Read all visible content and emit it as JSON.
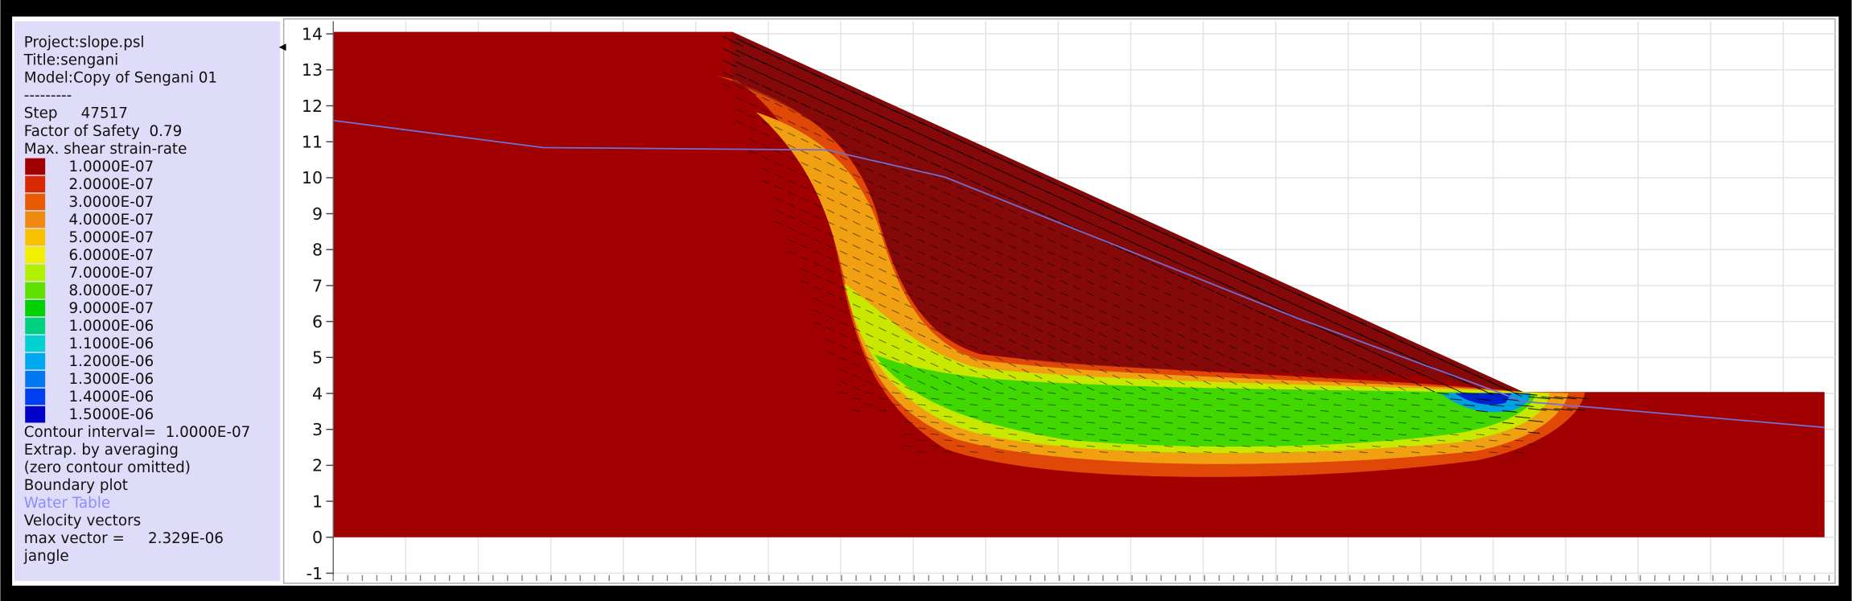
{
  "panel": {
    "header": [
      "Project:slope.psl",
      "Title:sengani",
      "Model:Copy of Sengani 01",
      "---------",
      "Step     47517",
      "Factor of Safety  0.79",
      "Max. shear strain-rate"
    ],
    "legend": [
      {
        "label": "1.0000E-07",
        "color": "#a00000"
      },
      {
        "label": "2.0000E-07",
        "color": "#d82800"
      },
      {
        "label": "3.0000E-07",
        "color": "#e85a00"
      },
      {
        "label": "4.0000E-07",
        "color": "#f08a10"
      },
      {
        "label": "5.0000E-07",
        "color": "#f8c000"
      },
      {
        "label": "6.0000E-07",
        "color": "#f0f000"
      },
      {
        "label": "7.0000E-07",
        "color": "#b0f000"
      },
      {
        "label": "8.0000E-07",
        "color": "#60e000"
      },
      {
        "label": "9.0000E-07",
        "color": "#00d000"
      },
      {
        "label": "1.0000E-06",
        "color": "#00d080"
      },
      {
        "label": "1.1000E-06",
        "color": "#00d0d0"
      },
      {
        "label": "1.2000E-06",
        "color": "#00a8f0"
      },
      {
        "label": "1.3000E-06",
        "color": "#0078f0"
      },
      {
        "label": "1.4000E-06",
        "color": "#0040f0"
      },
      {
        "label": "1.5000E-06",
        "color": "#0000c8"
      }
    ],
    "footer": [
      "Contour interval=  1.0000E-07",
      "Extrap. by averaging",
      "(zero contour omitted)",
      "Boundary plot"
    ],
    "water_table": "Water Table",
    "vectors": [
      "Velocity vectors",
      "max vector =     2.329E-06",
      "jangle"
    ]
  },
  "plot": {
    "yticks": [
      -1,
      0,
      1,
      2,
      3,
      4,
      5,
      6,
      7,
      8,
      9,
      10,
      11,
      12,
      13,
      14
    ]
  }
}
